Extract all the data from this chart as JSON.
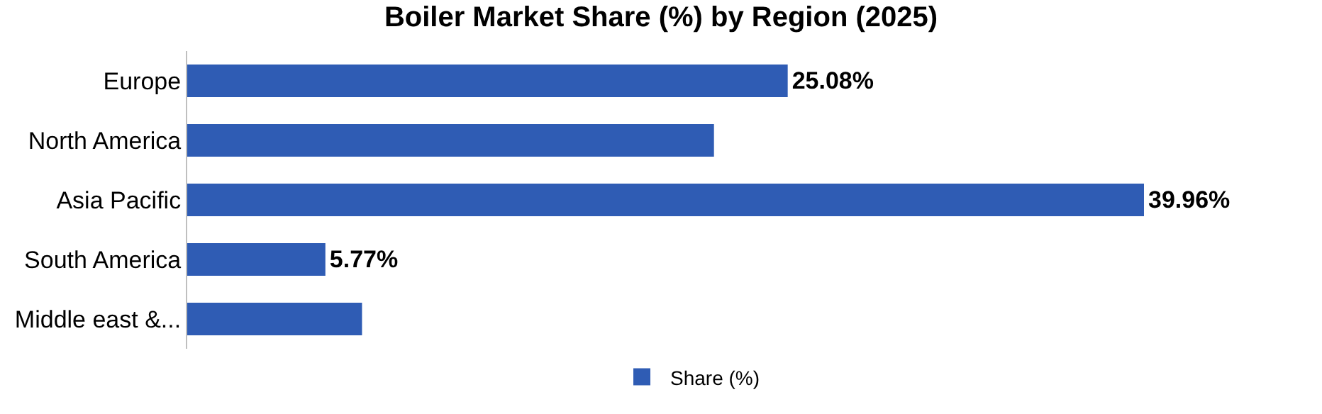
{
  "chart_data": {
    "type": "bar",
    "title": "Boiler Market Share (%) by Region (2025)",
    "orientation": "horizontal",
    "categories": [
      "Europe",
      "North America",
      "Asia Pacific",
      "South America",
      "Middle east &..."
    ],
    "series": [
      {
        "name": "Share (%)",
        "color": "#2f5cb4",
        "values": [
          25.08,
          22.0,
          39.96,
          5.77,
          7.3
        ],
        "value_labels": [
          "25.08%",
          null,
          "39.96%",
          "5.77%",
          null
        ]
      }
    ],
    "legend": "bottom",
    "grid": false
  }
}
